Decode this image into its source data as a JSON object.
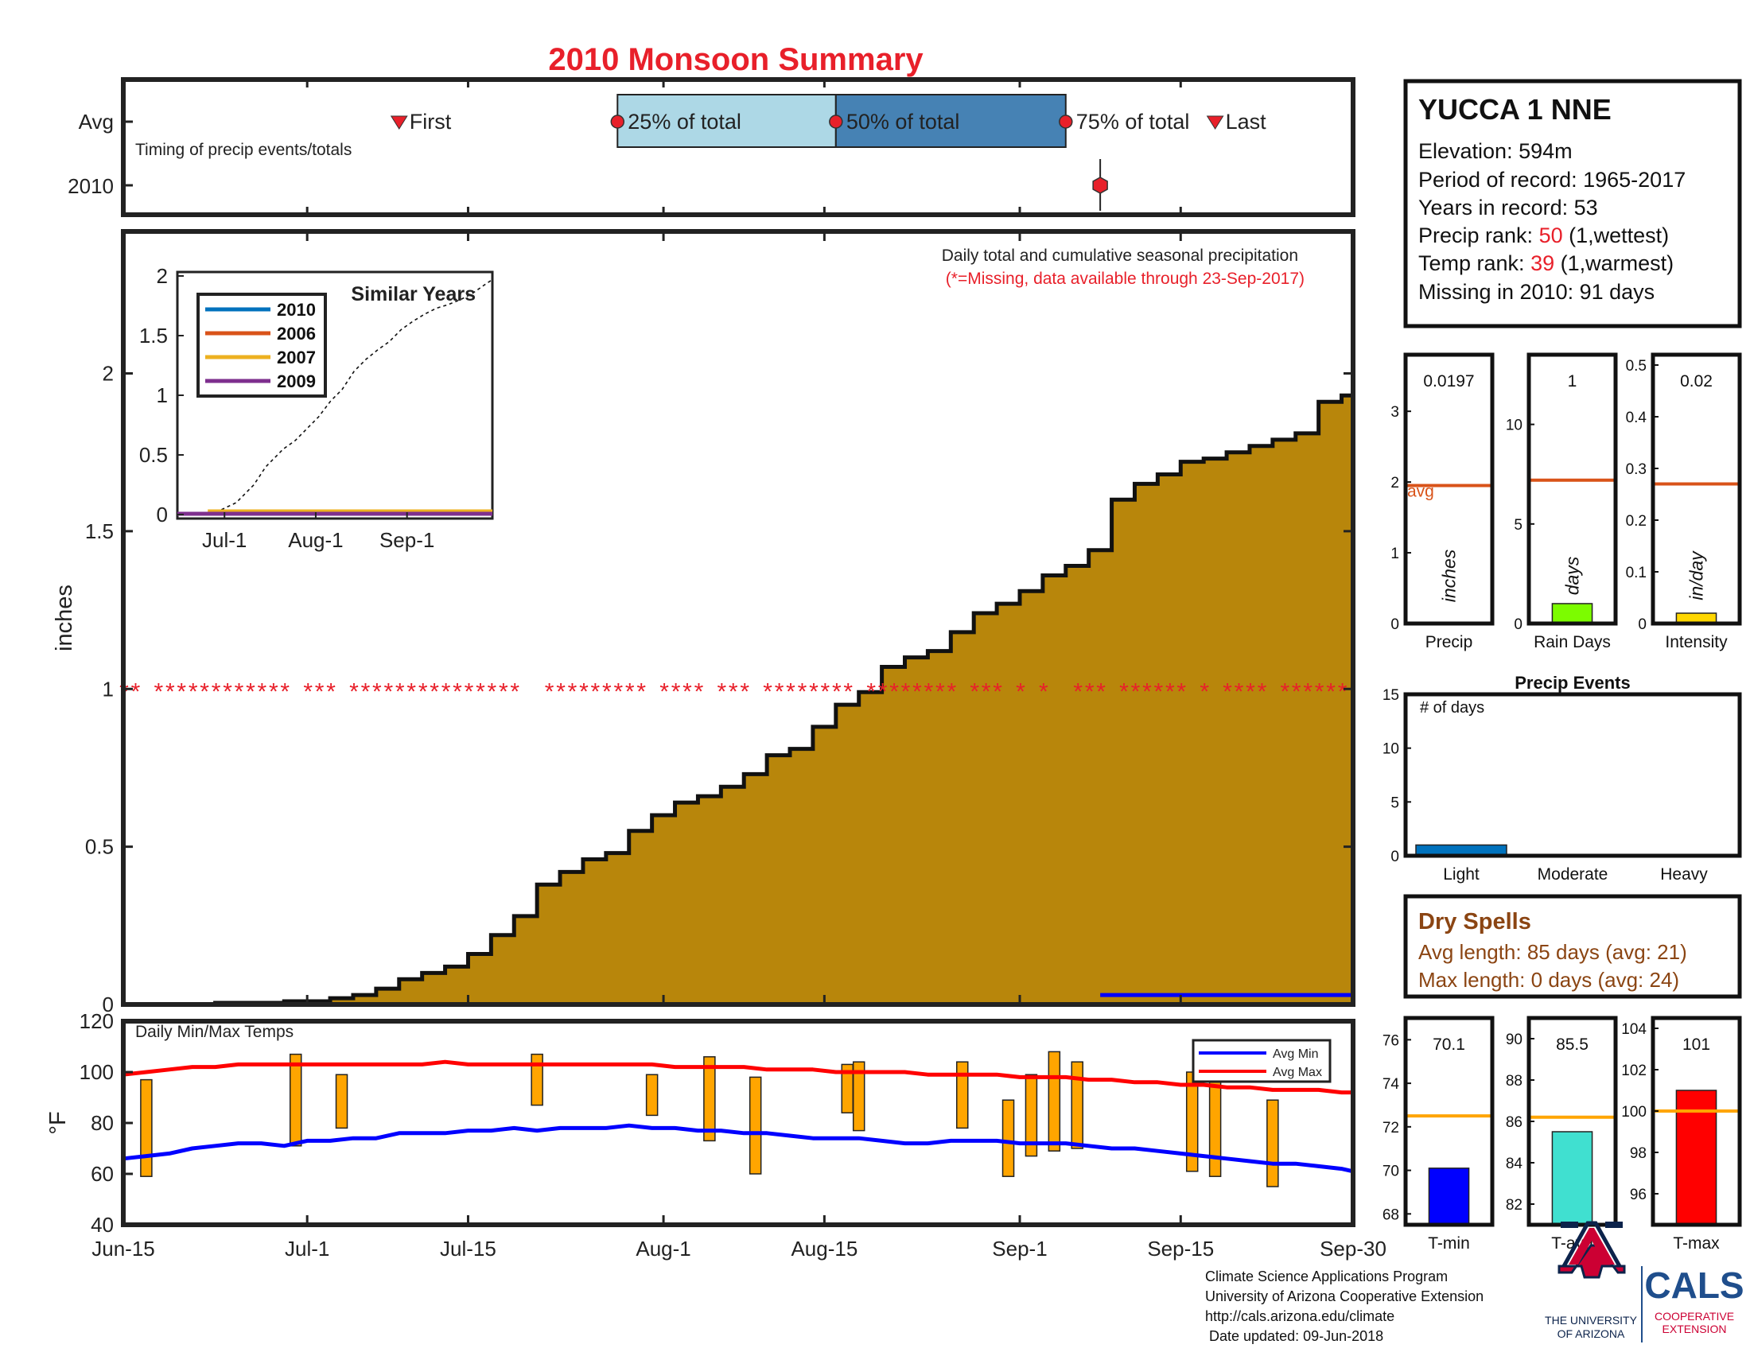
{
  "title": "2010 Monsoon Summary",
  "colors": {
    "title": "#e8202a",
    "precip_fill": "#b8860b",
    "missing": "#e8202a",
    "q25": "#add8e6",
    "q50": "#4682b4",
    "avg_line": "#d95319",
    "raindays_bar": "#7cfc00",
    "intensity_bar": "#ffd700",
    "tmin_bar": "#0000ff",
    "tavg_bar": "#40e0d0",
    "tmax_bar": "#ff0000",
    "temp_avg_line": "#ffa500",
    "events_bar": "#0072bd",
    "dry_spells": "#8b4513",
    "uofa_red": "#cc0033",
    "uofa_blue": "#0c234b",
    "cals_blue": "#1f4e8c"
  },
  "timing": {
    "row_labels": [
      "Avg",
      "2010"
    ],
    "caption": "Timing of precip events/totals",
    "markers": {
      "first": "First",
      "q25": "25% of total",
      "q50": "50% of total",
      "q75": "75% of total",
      "last": "Last"
    }
  },
  "station": {
    "name": "YUCCA 1 NNE",
    "elevation": "Elevation: 594m",
    "period": "Period of record: 1965-2017",
    "years": "Years in record: 53",
    "precip_rank_label": "Precip rank: ",
    "precip_rank_value": "50",
    "precip_rank_suffix": " (1,wettest)",
    "temp_rank_label": "Temp rank: ",
    "temp_rank_value": "39",
    "temp_rank_suffix": " (1,warmest)",
    "missing": "Missing in 2010: 91 days"
  },
  "main_chart": {
    "caption": "Daily total and cumulative seasonal precipitation",
    "missing_note": "(*=Missing, data available through 23-Sep-2017)",
    "ylabel": "inches",
    "yticks": [
      "0",
      "0.5",
      "1",
      "1.5",
      "2"
    ],
    "xticks": [
      "Jun-15",
      "Jul-1",
      "Jul-15",
      "Aug-1",
      "Aug-15",
      "Sep-1",
      "Sep-15",
      "Sep-30"
    ]
  },
  "inset": {
    "title": "Similar Years",
    "legend": [
      "2010",
      "2006",
      "2007",
      "2009"
    ],
    "legend_colors": [
      "#0072bd",
      "#d95319",
      "#edb120",
      "#7e2f8e"
    ],
    "yticks": [
      "0",
      "0.5",
      "1",
      "1.5",
      "2"
    ],
    "xticks": [
      "Jul-1",
      "Aug-1",
      "Sep-1"
    ]
  },
  "temps": {
    "caption": "Daily Min/Max Temps",
    "ylabel": "°F",
    "yticks": [
      "40",
      "60",
      "80",
      "100",
      "120"
    ],
    "legend": [
      "Avg Min",
      "Avg Max"
    ]
  },
  "small_panels": {
    "precip": {
      "label": "Precip",
      "value": "0.0197",
      "unit": "inches",
      "avg_label": "avg",
      "yticks": [
        "0",
        "1",
        "2",
        "3"
      ]
    },
    "raindays": {
      "label": "Rain Days",
      "value": "1",
      "unit": "days",
      "yticks": [
        "0",
        "5",
        "10"
      ]
    },
    "intensity": {
      "label": "Intensity",
      "value": "0.02",
      "unit": "in/day",
      "yticks": [
        "0",
        "0.1",
        "0.2",
        "0.3",
        "0.4",
        "0.5"
      ]
    },
    "events": {
      "title": "Precip Events",
      "caption": "# of days",
      "categories": [
        "Light",
        "Moderate",
        "Heavy"
      ],
      "yticks": [
        "0",
        "5",
        "10",
        "15"
      ]
    },
    "tmin": {
      "label": "T-min",
      "value": "70.1",
      "yticks": [
        "68",
        "70",
        "72",
        "74",
        "76"
      ]
    },
    "tavg": {
      "label": "T-avg",
      "value": "85.5",
      "yticks": [
        "82",
        "84",
        "86",
        "88",
        "90"
      ]
    },
    "tmax": {
      "label": "T-max",
      "value": "101",
      "yticks": [
        "96",
        "98",
        "100",
        "102",
        "104"
      ]
    }
  },
  "dry_spells": {
    "title": "Dry Spells",
    "avg_length": "Avg length: 85 days (avg: 21)",
    "max_length": "Max length: 0 days (avg: 24)"
  },
  "footer": {
    "lines": [
      "Climate Science Applications Program",
      "University of Arizona Cooperative Extension",
      "http://cals.arizona.edu/climate",
      " Date updated: 09-Jun-2018"
    ],
    "uofa_line1": "THE UNIVERSITY",
    "uofa_line2": "OF ARIZONA",
    "cals": "CALS",
    "cals_line1": "COOPERATIVE",
    "cals_line2": "EXTENSION"
  },
  "chart_data": {
    "type": "area",
    "title": "2010 Monsoon Summary",
    "xlabel": "",
    "ylabel": "inches",
    "xlim": [
      0,
      107
    ],
    "ylim": [
      0,
      2.45
    ],
    "x_note": "days since Jun-15",
    "xtick_days": [
      0,
      16,
      30,
      47,
      61,
      78,
      92,
      107
    ],
    "cumulative_avg": {
      "x": [
        0,
        8,
        14,
        18,
        20,
        22,
        24,
        26,
        28,
        30,
        32,
        34,
        36,
        38,
        40,
        42,
        44,
        46,
        48,
        50,
        52,
        54,
        56,
        58,
        60,
        62,
        64,
        66,
        68,
        70,
        72,
        74,
        76,
        78,
        80,
        82,
        84,
        86,
        88,
        90,
        92,
        94,
        96,
        98,
        100,
        102,
        104,
        106,
        107
      ],
      "y": [
        0.0,
        0.005,
        0.01,
        0.02,
        0.03,
        0.05,
        0.08,
        0.1,
        0.12,
        0.16,
        0.22,
        0.28,
        0.38,
        0.42,
        0.46,
        0.48,
        0.55,
        0.6,
        0.64,
        0.66,
        0.69,
        0.73,
        0.79,
        0.81,
        0.88,
        0.95,
        0.99,
        1.07,
        1.1,
        1.12,
        1.18,
        1.24,
        1.27,
        1.31,
        1.36,
        1.39,
        1.44,
        1.6,
        1.65,
        1.68,
        1.72,
        1.73,
        1.75,
        1.77,
        1.79,
        1.81,
        1.91,
        1.93,
        1.94
      ]
    },
    "missing_y": 1.0,
    "missing_days": [
      0,
      1,
      3,
      4,
      5,
      6,
      7,
      8,
      9,
      10,
      11,
      12,
      13,
      14,
      16,
      17,
      18,
      20,
      21,
      22,
      23,
      24,
      25,
      26,
      27,
      28,
      29,
      30,
      31,
      32,
      33,
      34,
      37,
      38,
      39,
      40,
      41,
      42,
      43,
      44,
      45,
      47,
      48,
      49,
      50,
      52,
      53,
      54,
      56,
      57,
      58,
      59,
      60,
      61,
      62,
      63,
      65,
      66,
      67,
      68,
      69,
      70,
      71,
      72,
      74,
      75,
      76,
      78,
      80,
      83,
      84,
      85,
      87,
      88,
      89,
      90,
      91,
      92,
      94,
      96,
      97,
      98,
      99,
      101,
      102,
      103,
      104,
      105,
      106
    ],
    "blue_segment": [
      85,
      107,
      0.02
    ],
    "inset": {
      "xlim": [
        0,
        107
      ],
      "ylim": [
        0,
        2
      ],
      "xtick_days": [
        16,
        47,
        78
      ],
      "avg_x": [
        0,
        8,
        14,
        20,
        26,
        30,
        36,
        40,
        44,
        48,
        52,
        56,
        60,
        64,
        68,
        72,
        76,
        80,
        84,
        88,
        92,
        96,
        100,
        104,
        107
      ],
      "avg_y": [
        0,
        0.01,
        0.03,
        0.1,
        0.25,
        0.4,
        0.55,
        0.62,
        0.72,
        0.82,
        0.95,
        1.05,
        1.2,
        1.3,
        1.38,
        1.45,
        1.55,
        1.62,
        1.68,
        1.73,
        1.76,
        1.8,
        1.85,
        1.92,
        1.97
      ],
      "series": [
        {
          "name": "2010",
          "x": [
            0,
            107
          ],
          "y": [
            0.0,
            0.0
          ]
        },
        {
          "name": "2006",
          "x": [
            0,
            107
          ],
          "y": [
            0.0,
            0.0
          ]
        },
        {
          "name": "2007",
          "x": [
            0,
            11,
            11,
            107
          ],
          "y": [
            0.0,
            0.0,
            0.02,
            0.02
          ]
        },
        {
          "name": "2009",
          "x": [
            0,
            107
          ],
          "y": [
            0.0,
            0.0
          ]
        }
      ]
    },
    "temps": {
      "ylim": [
        40,
        120
      ],
      "avg_min": {
        "x": [
          0,
          2,
          4,
          6,
          8,
          10,
          12,
          14,
          16,
          18,
          20,
          22,
          24,
          26,
          28,
          30,
          32,
          34,
          36,
          38,
          40,
          42,
          44,
          46,
          48,
          50,
          52,
          54,
          56,
          58,
          60,
          62,
          64,
          66,
          68,
          70,
          72,
          74,
          76,
          78,
          80,
          82,
          84,
          86,
          88,
          90,
          92,
          94,
          96,
          98,
          100,
          102,
          104,
          106,
          107
        ],
        "y": [
          66,
          67,
          68,
          70,
          71,
          72,
          72,
          71,
          73,
          73,
          74,
          74,
          76,
          76,
          76,
          77,
          77,
          78,
          77,
          78,
          78,
          78,
          79,
          78,
          78,
          77,
          77,
          76,
          76,
          75,
          74,
          74,
          74,
          73,
          72,
          72,
          73,
          73,
          73,
          72,
          72,
          72,
          71,
          70,
          70,
          69,
          68,
          67,
          66,
          65,
          64,
          64,
          63,
          62,
          61
        ]
      },
      "avg_max": {
        "x": [
          0,
          2,
          4,
          6,
          8,
          10,
          12,
          14,
          16,
          18,
          20,
          22,
          24,
          26,
          28,
          30,
          32,
          34,
          36,
          38,
          40,
          42,
          44,
          46,
          48,
          50,
          52,
          54,
          56,
          58,
          60,
          62,
          64,
          66,
          68,
          70,
          72,
          74,
          76,
          78,
          80,
          82,
          84,
          86,
          88,
          90,
          92,
          94,
          96,
          98,
          100,
          102,
          104,
          106,
          107
        ],
        "y": [
          99,
          100,
          101,
          102,
          102,
          103,
          103,
          103,
          103,
          103,
          103,
          103,
          103,
          103,
          104,
          103,
          103,
          103,
          103,
          103,
          103,
          103,
          103,
          103,
          102,
          102,
          102,
          102,
          101,
          101,
          101,
          100,
          100,
          100,
          100,
          99,
          99,
          99,
          99,
          98,
          98,
          98,
          97,
          97,
          96,
          96,
          95,
          95,
          94,
          94,
          93,
          93,
          93,
          92,
          92
        ]
      },
      "daily_bars": [
        {
          "x": 2,
          "low": 59,
          "high": 97
        },
        {
          "x": 15,
          "low": 71,
          "high": 107
        },
        {
          "x": 19,
          "low": 78,
          "high": 99
        },
        {
          "x": 36,
          "low": 87,
          "high": 107
        },
        {
          "x": 46,
          "low": 83,
          "high": 99
        },
        {
          "x": 51,
          "low": 73,
          "high": 106
        },
        {
          "x": 55,
          "low": 60,
          "high": 98
        },
        {
          "x": 63,
          "low": 84,
          "high": 103
        },
        {
          "x": 64,
          "low": 77,
          "high": 104
        },
        {
          "x": 73,
          "low": 78,
          "high": 104
        },
        {
          "x": 77,
          "low": 59,
          "high": 89
        },
        {
          "x": 79,
          "low": 67,
          "high": 99
        },
        {
          "x": 81,
          "low": 69,
          "high": 108
        },
        {
          "x": 83,
          "low": 70,
          "high": 104
        },
        {
          "x": 93,
          "low": 61,
          "high": 100
        },
        {
          "x": 95,
          "low": 59,
          "high": 99
        },
        {
          "x": 100,
          "low": 55,
          "high": 89
        }
      ]
    },
    "timing": {
      "xlim": [
        0,
        107
      ],
      "avg": {
        "first": 24,
        "q25": 43,
        "q50": 62,
        "q75": 82,
        "last": 95
      },
      "y2010": {
        "point": 85,
        "errlow": 85,
        "errhigh": 85
      }
    },
    "small": {
      "precip": {
        "value": 0.0197,
        "avg": 1.95,
        "ylim": [
          0,
          3.8
        ]
      },
      "raindays": {
        "value": 1,
        "avg": 7.2,
        "ylim": [
          0,
          13.5
        ]
      },
      "intensity": {
        "value": 0.02,
        "avg": 0.27,
        "ylim": [
          0,
          0.52
        ]
      },
      "events": {
        "values": [
          1,
          0,
          0
        ],
        "ylim": [
          0,
          15
        ]
      },
      "tmin": {
        "value": 70.1,
        "avg": 72.5,
        "ylim": [
          67.5,
          77
        ]
      },
      "tavg": {
        "value": 85.5,
        "avg": 86.2,
        "ylim": [
          81,
          91
        ]
      },
      "tmax": {
        "value": 101,
        "avg": 100,
        "ylim": [
          94.5,
          104.5
        ]
      }
    }
  }
}
